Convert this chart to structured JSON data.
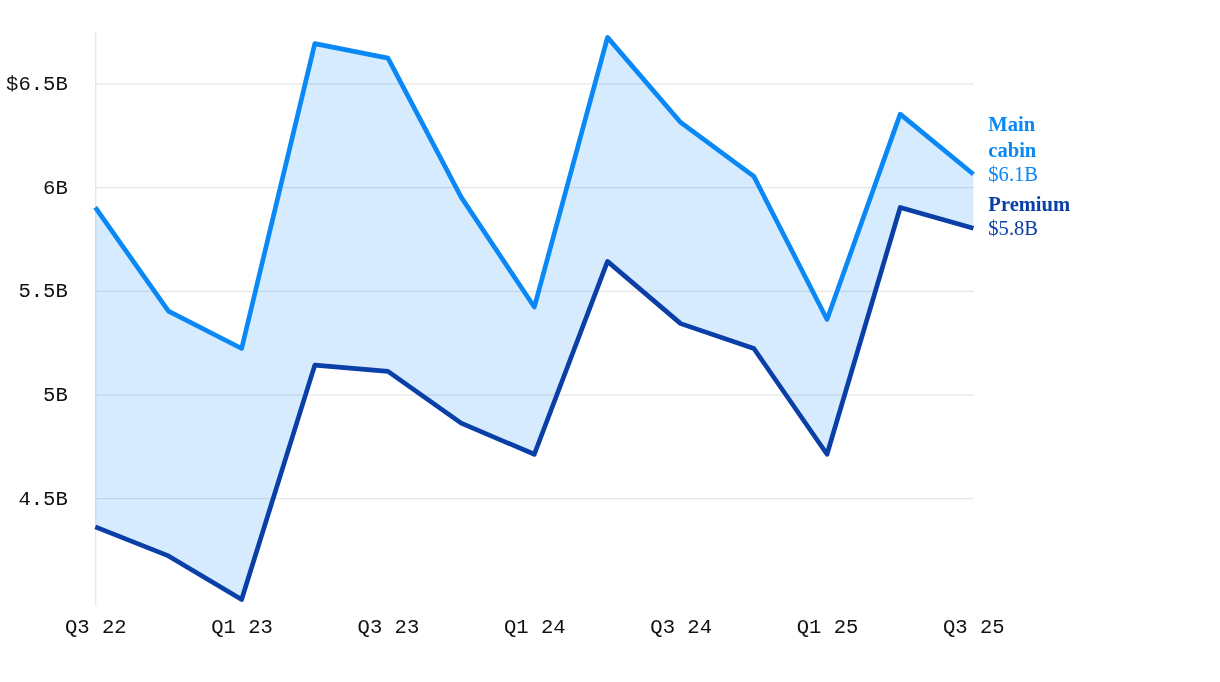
{
  "chart_data": {
    "type": "line",
    "categories": [
      "Q3 22",
      null,
      "Q1 23",
      null,
      "Q3 23",
      null,
      "Q1 24",
      null,
      "Q3 24",
      null,
      "Q1 25",
      null,
      "Q3 25"
    ],
    "series": [
      {
        "name": "Main cabin",
        "color": "#0a88f5",
        "values": [
          5.9,
          5.4,
          5.22,
          6.69,
          6.62,
          5.95,
          5.42,
          6.72,
          6.31,
          6.05,
          5.36,
          6.35,
          6.06
        ],
        "lower": [
          4.36,
          4.22,
          4.01,
          5.14,
          5.11,
          4.86,
          4.71,
          5.64,
          5.34,
          5.22,
          4.71,
          5.9,
          5.8
        ],
        "upper": [
          5.9,
          5.4,
          5.22,
          6.69,
          6.62,
          5.95,
          5.42,
          6.72,
          6.31,
          6.05,
          5.36,
          6.35,
          6.06
        ],
        "value_labels": [
          null,
          null,
          null,
          null,
          null,
          null,
          null,
          null,
          null,
          null,
          null,
          null,
          "$6.1B"
        ]
      },
      {
        "name": "Premium",
        "color": "#0a3fa8",
        "values": [
          4.36,
          4.22,
          4.01,
          5.14,
          5.11,
          4.86,
          4.71,
          5.64,
          5.34,
          5.22,
          4.71,
          5.9,
          5.8
        ],
        "value_labels": [
          null,
          null,
          null,
          null,
          null,
          null,
          null,
          null,
          null,
          null,
          null,
          null,
          "$5.8B"
        ]
      }
    ],
    "ylim": [
      3.98,
      6.75
    ],
    "yticks": [
      {
        "value": 4.5,
        "label": "4.5B"
      },
      {
        "value": 5,
        "label": "5B"
      },
      {
        "value": 5.5,
        "label": "5.5B"
      },
      {
        "value": 6,
        "label": "6B"
      },
      {
        "value": 6.5,
        "label": "$6.5B"
      }
    ],
    "grid": "y",
    "marker": "none",
    "line_style": "solid"
  }
}
